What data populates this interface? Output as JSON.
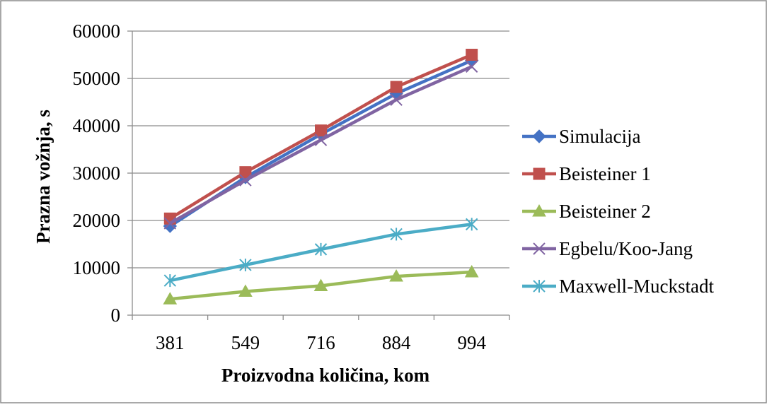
{
  "chart_data": {
    "type": "line",
    "title": "",
    "xlabel": "Proizvodna količina, kom",
    "ylabel": "Prazna vožnja, s",
    "categories": [
      "381",
      "549",
      "716",
      "884",
      "994"
    ],
    "ylim": [
      0,
      60000
    ],
    "yticks": [
      0,
      10000,
      20000,
      30000,
      40000,
      50000,
      60000
    ],
    "grid": "horizontal",
    "legend_position": "right",
    "series": [
      {
        "name": "Simulacija",
        "color": "#4472C4",
        "marker": "diamond",
        "values": [
          18800,
          29100,
          38200,
          46800,
          53800
        ]
      },
      {
        "name": "Beisteiner 1",
        "color": "#C0504D",
        "marker": "square",
        "values": [
          20400,
          30200,
          39000,
          48200,
          55000
        ]
      },
      {
        "name": "Beisteiner 2",
        "color": "#9BBB59",
        "marker": "triangle",
        "values": [
          3400,
          5000,
          6200,
          8200,
          9100
        ]
      },
      {
        "name": "Egbelu/Koo-Jang",
        "color": "#8064A2",
        "marker": "x",
        "values": [
          19400,
          28500,
          37000,
          45500,
          52500
        ]
      },
      {
        "name": "Maxwell-Muckstadt",
        "color": "#4BACC6",
        "marker": "star",
        "values": [
          7300,
          10600,
          13900,
          17100,
          19200
        ]
      }
    ]
  }
}
